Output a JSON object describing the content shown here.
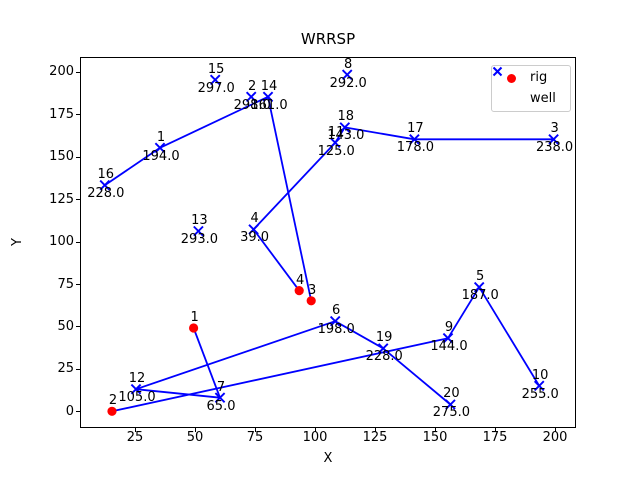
{
  "figure": {
    "title": "WRRSP",
    "xlabel": "X",
    "ylabel": "Y"
  },
  "legend": {
    "items": [
      {
        "label": "rig",
        "marker": "circle",
        "color": "#ff0000"
      },
      {
        "label": "well",
        "marker": "x",
        "color": "#0000ff"
      }
    ]
  },
  "colors": {
    "rig": "#ff0000",
    "well": "#0000ff",
    "edge": "#0000ff",
    "axis": "#000000"
  },
  "chart_data": {
    "type": "scatter",
    "title": "WRRSP",
    "xlabel": "X",
    "ylabel": "Y",
    "xlim": [
      2.083,
      208.75
    ],
    "ylim": [
      -9.412,
      208.824
    ],
    "xticks": [
      25,
      50,
      75,
      100,
      125,
      150,
      175,
      200
    ],
    "yticks": [
      0,
      25,
      50,
      75,
      100,
      125,
      150,
      175,
      200
    ],
    "grid": false,
    "legend_position": "upper right",
    "series": [
      {
        "name": "rig",
        "marker": "circle",
        "color": "#ff0000",
        "points": [
          {
            "id": 1,
            "x": 49,
            "y": 50
          },
          {
            "id": 2,
            "x": 15,
            "y": 1
          },
          {
            "id": 3,
            "x": 98,
            "y": 66
          },
          {
            "id": 4,
            "x": 93,
            "y": 72
          }
        ]
      },
      {
        "name": "well",
        "marker": "x",
        "color": "#0000ff",
        "points": [
          {
            "id": 1,
            "x": 35,
            "y": 156,
            "value": "194.0"
          },
          {
            "id": 2,
            "x": 73,
            "y": 186,
            "value": "298.0"
          },
          {
            "id": 3,
            "x": 199,
            "y": 161,
            "value": "238.0"
          },
          {
            "id": 4,
            "x": 74,
            "y": 108,
            "value": "39.0"
          },
          {
            "id": 5,
            "x": 168,
            "y": 74,
            "value": "187.0"
          },
          {
            "id": 6,
            "x": 108,
            "y": 54,
            "value": "198.0"
          },
          {
            "id": 7,
            "x": 60,
            "y": 9,
            "value": "65.0"
          },
          {
            "id": 8,
            "x": 113,
            "y": 199,
            "value": "292.0"
          },
          {
            "id": 9,
            "x": 155,
            "y": 44,
            "value": "144.0"
          },
          {
            "id": 10,
            "x": 193,
            "y": 16,
            "value": "255.0"
          },
          {
            "id": 11,
            "x": 108,
            "y": 159,
            "value": "125.0"
          },
          {
            "id": 12,
            "x": 25,
            "y": 14,
            "value": "105.0"
          },
          {
            "id": 13,
            "x": 51,
            "y": 107,
            "value": "293.0"
          },
          {
            "id": 14,
            "x": 80,
            "y": 186,
            "value": "161.0"
          },
          {
            "id": 15,
            "x": 58,
            "y": 196,
            "value": "297.0"
          },
          {
            "id": 16,
            "x": 12,
            "y": 134,
            "value": "228.0"
          },
          {
            "id": 17,
            "x": 141,
            "y": 161,
            "value": "178.0"
          },
          {
            "id": 18,
            "x": 112,
            "y": 168,
            "value": "143.0"
          },
          {
            "id": 19,
            "x": 128,
            "y": 38,
            "value": "228.0"
          },
          {
            "id": 20,
            "x": 156,
            "y": 5,
            "value": "275.0"
          }
        ]
      }
    ],
    "edges": [
      [
        "rig:1",
        "well:7"
      ],
      [
        "well:7",
        "well:12"
      ],
      [
        "well:12",
        "well:6"
      ],
      [
        "well:6",
        "well:19"
      ],
      [
        "well:19",
        "well:20"
      ],
      [
        "rig:2",
        "well:9"
      ],
      [
        "well:9",
        "well:5"
      ],
      [
        "well:5",
        "well:10"
      ],
      [
        "rig:3",
        "well:14"
      ],
      [
        "well:14",
        "well:1"
      ],
      [
        "well:1",
        "well:16"
      ],
      [
        "rig:4",
        "well:4"
      ],
      [
        "well:4",
        "well:11"
      ],
      [
        "well:11",
        "well:18"
      ],
      [
        "well:18",
        "well:17"
      ],
      [
        "well:17",
        "well:3"
      ]
    ]
  }
}
